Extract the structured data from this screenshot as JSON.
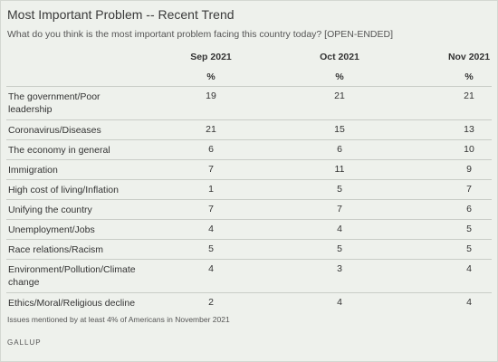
{
  "title": "Most Important Problem -- Recent Trend",
  "question": "What do you think is the most important problem facing this country today? [OPEN-ENDED]",
  "columns": [
    {
      "label": "Sep 2021",
      "unit": "%"
    },
    {
      "label": "Oct 2021",
      "unit": "%"
    },
    {
      "label": "Nov 2021",
      "unit": "%"
    }
  ],
  "rows": [
    {
      "label": "The government/Poor leadership",
      "values": [
        "19",
        "21",
        "21"
      ]
    },
    {
      "label": "Coronavirus/Diseases",
      "values": [
        "21",
        "15",
        "13"
      ]
    },
    {
      "label": "The economy in general",
      "values": [
        "6",
        "6",
        "10"
      ]
    },
    {
      "label": "Immigration",
      "values": [
        "7",
        "11",
        "9"
      ]
    },
    {
      "label": "High cost of living/Inflation",
      "values": [
        "1",
        "5",
        "7"
      ]
    },
    {
      "label": "Unifying the country",
      "values": [
        "7",
        "7",
        "6"
      ]
    },
    {
      "label": "Unemployment/Jobs",
      "values": [
        "4",
        "4",
        "5"
      ]
    },
    {
      "label": "Race relations/Racism",
      "values": [
        "5",
        "5",
        "5"
      ]
    },
    {
      "label": "Environment/Pollution/Climate change",
      "values": [
        "4",
        "3",
        "4"
      ]
    },
    {
      "label": "Ethics/Moral/Religious decline",
      "values": [
        "2",
        "4",
        "4"
      ]
    }
  ],
  "footnote": "Issues mentioned by at least 4% of Americans in November 2021",
  "source": "GALLUP"
}
